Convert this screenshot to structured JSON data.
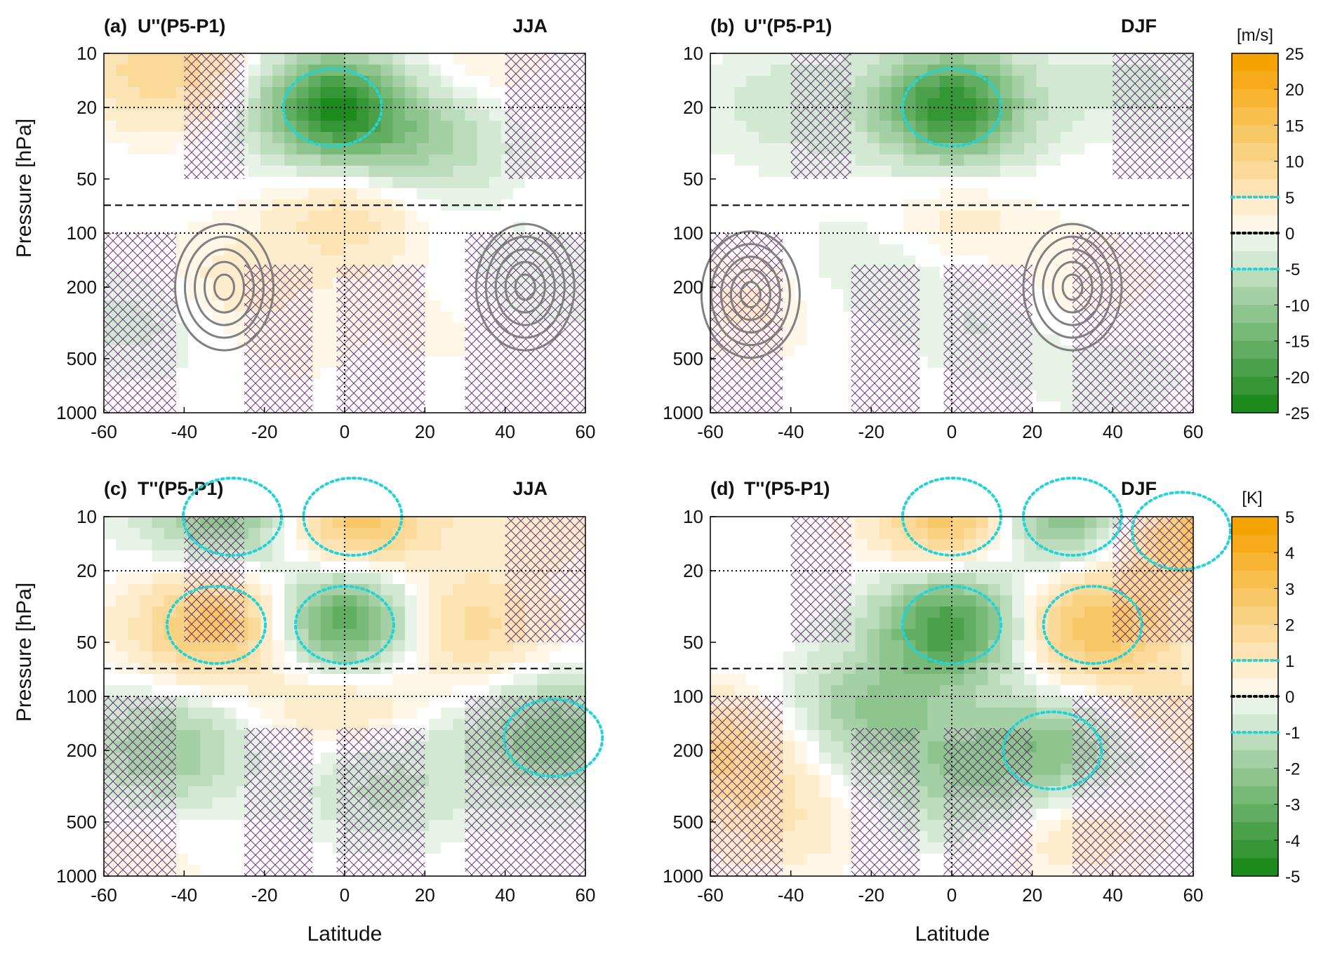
{
  "figure": {
    "y_axis_label": "Pressure [hPa]",
    "x_axis_label": "Latitude"
  },
  "colors": {
    "positive_max": "#f5a300",
    "neutral": "#ffffff",
    "negative_max": "#1d8a1d",
    "threshold_contour": "#22d3d8",
    "zero_contour": "#000000",
    "climatology_contour": "#808080",
    "hatch": "#5b1a6b"
  },
  "colorbars": [
    {
      "unit": "[m/s]",
      "ticks": [
        "25",
        "20",
        "15",
        "10",
        "5",
        "0",
        "-5",
        "-10",
        "-15",
        "-20",
        "-25"
      ]
    },
    {
      "unit": "[K]",
      "ticks": [
        "5",
        "4",
        "3",
        "2",
        "1",
        "0",
        "-1",
        "-2",
        "-3",
        "-4",
        "-5"
      ]
    }
  ],
  "chart_data": [
    {
      "type": "heatmap",
      "panel": "(a)",
      "variable": "U''(P5-P1)",
      "season": "JJA",
      "xlabel": "",
      "ylabel": "Pressure [hPa]",
      "x_ticks": [
        "-60",
        "-40",
        "-20",
        "0",
        "20",
        "40",
        "60"
      ],
      "y_ticks": [
        "10",
        "20",
        "50",
        "100",
        "200",
        "500",
        "1000"
      ],
      "xlim": [
        -60,
        60
      ],
      "ylim": [
        1000,
        10
      ],
      "y_scale": "log",
      "colorbar_range": [
        -25,
        25
      ],
      "unit": "m/s",
      "features": [
        {
          "lat": -3,
          "p": 20,
          "value": -22
        },
        {
          "lat": 20,
          "p": 30,
          "value": -8
        },
        {
          "lat": 0,
          "p": 80,
          "value": 7
        },
        {
          "lat": -45,
          "p": 12,
          "value": 10
        },
        {
          "lat": 30,
          "p": 12,
          "value": 3
        },
        {
          "lat": -30,
          "p": 200,
          "value": 4
        },
        {
          "lat": -50,
          "p": 300,
          "value": -4
        },
        {
          "lat": 45,
          "p": 200,
          "value": -3
        },
        {
          "lat": 30,
          "p": 300,
          "value": 2
        },
        {
          "lat": -10,
          "p": 500,
          "value": 1
        }
      ]
    },
    {
      "type": "heatmap",
      "panel": "(b)",
      "variable": "U''(P5-P1)",
      "season": "DJF",
      "xlabel": "",
      "ylabel": "",
      "x_ticks": [
        "-60",
        "-40",
        "-20",
        "0",
        "20",
        "40",
        "60"
      ],
      "y_ticks": [
        "10",
        "20",
        "50",
        "100",
        "200",
        "500",
        "1000"
      ],
      "xlim": [
        -60,
        60
      ],
      "ylim": [
        1000,
        10
      ],
      "y_scale": "log",
      "colorbar_range": [
        -25,
        25
      ],
      "unit": "m/s",
      "features": [
        {
          "lat": 0,
          "p": 20,
          "value": -22
        },
        {
          "lat": -40,
          "p": 20,
          "value": -4
        },
        {
          "lat": 45,
          "p": 15,
          "value": -3
        },
        {
          "lat": 0,
          "p": 80,
          "value": 4
        },
        {
          "lat": -50,
          "p": 250,
          "value": 3
        },
        {
          "lat": 30,
          "p": 200,
          "value": 3
        },
        {
          "lat": -20,
          "p": 150,
          "value": -3
        },
        {
          "lat": 10,
          "p": 300,
          "value": -3
        },
        {
          "lat": 40,
          "p": 600,
          "value": -2
        }
      ]
    },
    {
      "type": "heatmap",
      "panel": "(c)",
      "variable": "T''(P5-P1)",
      "season": "JJA",
      "xlabel": "Latitude",
      "ylabel": "Pressure [hPa]",
      "x_ticks": [
        "-60",
        "-40",
        "-20",
        "0",
        "20",
        "40",
        "60"
      ],
      "y_ticks": [
        "10",
        "20",
        "50",
        "100",
        "200",
        "500",
        "1000"
      ],
      "xlim": [
        -60,
        60
      ],
      "ylim": [
        1000,
        10
      ],
      "y_scale": "log",
      "colorbar_range": [
        -5,
        5
      ],
      "unit": "K",
      "features": [
        {
          "lat": -32,
          "p": 40,
          "value": 3
        },
        {
          "lat": 0,
          "p": 40,
          "value": -4
        },
        {
          "lat": 30,
          "p": 40,
          "value": 1.8
        },
        {
          "lat": 2,
          "p": 10,
          "value": 3
        },
        {
          "lat": -28,
          "p": 10,
          "value": -2.5
        },
        {
          "lat": 50,
          "p": 10,
          "value": 0.8
        },
        {
          "lat": 0,
          "p": 100,
          "value": 1.5
        },
        {
          "lat": -45,
          "p": 200,
          "value": -2
        },
        {
          "lat": 52,
          "p": 170,
          "value": -2.5
        },
        {
          "lat": 10,
          "p": 300,
          "value": -1.2
        },
        {
          "lat": -55,
          "p": 800,
          "value": 0.5
        }
      ]
    },
    {
      "type": "heatmap",
      "panel": "(d)",
      "variable": "T''(P5-P1)",
      "season": "DJF",
      "xlabel": "Latitude",
      "ylabel": "",
      "x_ticks": [
        "-60",
        "-40",
        "-20",
        "0",
        "20",
        "40",
        "60"
      ],
      "y_ticks": [
        "10",
        "20",
        "50",
        "100",
        "200",
        "500",
        "1000"
      ],
      "xlim": [
        -60,
        60
      ],
      "ylim": [
        1000,
        10
      ],
      "y_scale": "log",
      "colorbar_range": [
        -5,
        5
      ],
      "unit": "K",
      "features": [
        {
          "lat": 0,
          "p": 40,
          "value": -4
        },
        {
          "lat": 35,
          "p": 40,
          "value": 3
        },
        {
          "lat": 0,
          "p": 10,
          "value": 3
        },
        {
          "lat": 30,
          "p": 10,
          "value": -3
        },
        {
          "lat": 57,
          "p": 12,
          "value": 3
        },
        {
          "lat": -20,
          "p": 120,
          "value": -2
        },
        {
          "lat": 25,
          "p": 200,
          "value": -2.5
        },
        {
          "lat": -58,
          "p": 200,
          "value": 2
        },
        {
          "lat": -45,
          "p": 500,
          "value": 1
        },
        {
          "lat": 30,
          "p": 500,
          "value": 1
        },
        {
          "lat": 0,
          "p": 300,
          "value": -1.5
        },
        {
          "lat": 55,
          "p": 120,
          "value": 1
        }
      ]
    }
  ]
}
